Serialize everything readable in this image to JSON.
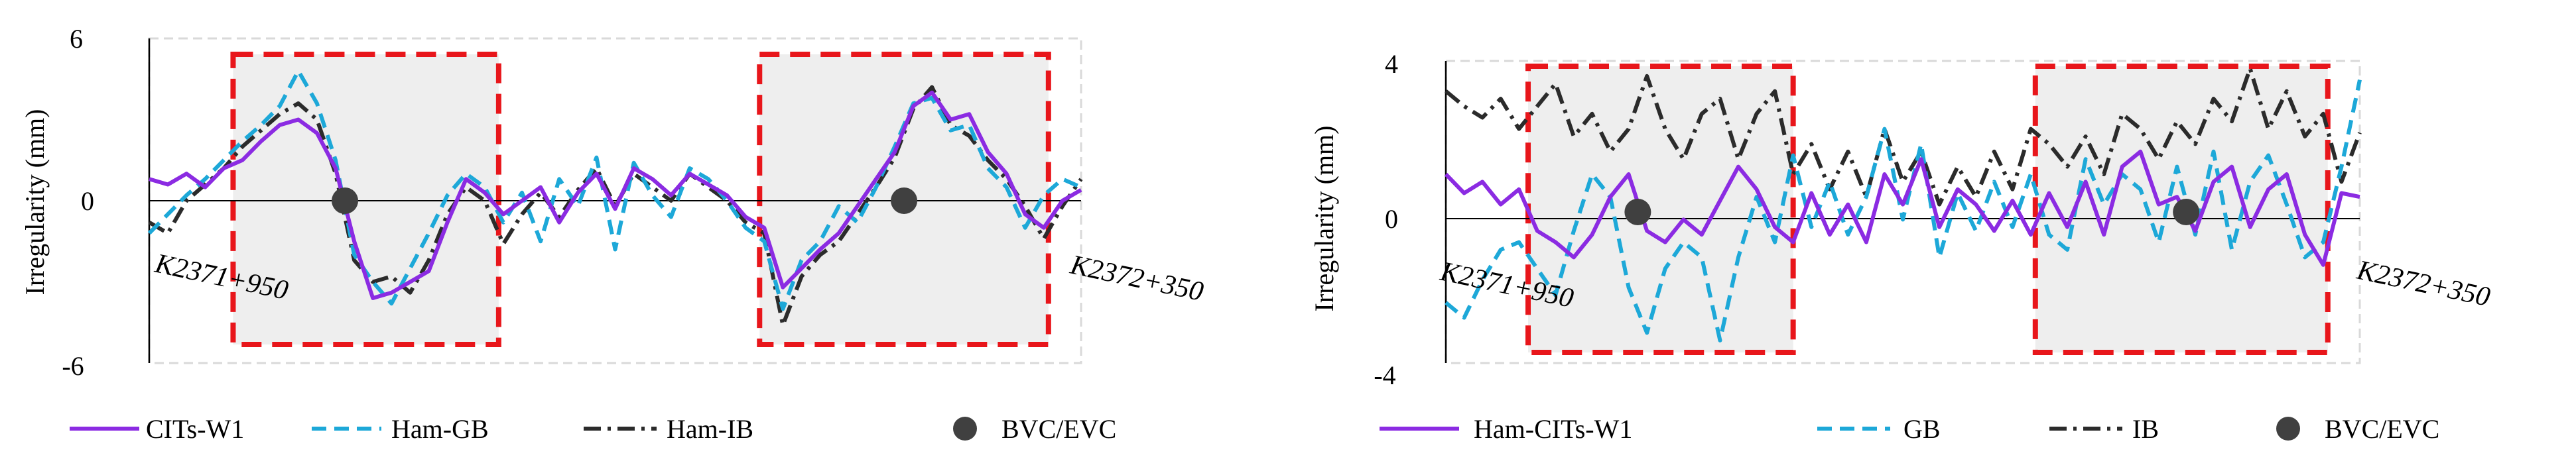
{
  "chart_data": [
    {
      "type": "line",
      "ylabel": "Irregularity (mm)",
      "xlabel": "",
      "ylim": [
        -6,
        6
      ],
      "yticks": [
        6,
        0,
        -6
      ],
      "grid": false,
      "start_label": "K2371+950",
      "end_label": "K2372+350",
      "legend_position": "bottom",
      "colors": {
        "s1": "#8B2BE2",
        "s2": "#1DA8D8",
        "s3": "#2b2b2b",
        "marker": "#404040",
        "box": "#E8161B",
        "shade": "#d9d9d9"
      },
      "legend": [
        "CITs-W1",
        "Ham-GB",
        "Ham-IB",
        "BVC/EVC"
      ],
      "curve_regions": [
        [
          0.09,
          0.375
        ],
        [
          0.655,
          0.965
        ]
      ],
      "bvc_evc_markers": [
        [
          0.21,
          0
        ],
        [
          0.81,
          0
        ]
      ],
      "series": [
        {
          "name": "CITs-W1",
          "style": "solid",
          "x": [
            0,
            0.02,
            0.04,
            0.06,
            0.08,
            0.1,
            0.12,
            0.14,
            0.16,
            0.18,
            0.2,
            0.22,
            0.24,
            0.26,
            0.28,
            0.3,
            0.32,
            0.34,
            0.36,
            0.38,
            0.4,
            0.42,
            0.44,
            0.46,
            0.48,
            0.5,
            0.52,
            0.54,
            0.56,
            0.58,
            0.6,
            0.62,
            0.64,
            0.66,
            0.68,
            0.7,
            0.72,
            0.74,
            0.76,
            0.78,
            0.8,
            0.82,
            0.84,
            0.86,
            0.88,
            0.9,
            0.92,
            0.94,
            0.96,
            0.98,
            1
          ],
          "y": [
            0.8,
            0.6,
            1.0,
            0.5,
            1.2,
            1.5,
            2.2,
            2.8,
            3.0,
            2.5,
            1.2,
            -1.5,
            -3.6,
            -3.4,
            -3.0,
            -2.6,
            -0.8,
            0.8,
            0.3,
            -0.5,
            0.0,
            0.5,
            -0.8,
            0.3,
            1.0,
            -0.3,
            1.2,
            0.8,
            0.2,
            1.0,
            0.6,
            0.2,
            -0.6,
            -1.0,
            -3.2,
            -2.5,
            -1.8,
            -1.2,
            -0.2,
            0.8,
            1.8,
            3.5,
            4.0,
            3.0,
            3.2,
            1.8,
            1.0,
            -0.5,
            -1.0,
            0.0,
            0.4
          ]
        },
        {
          "name": "Ham-GB",
          "style": "dashed",
          "x": [
            0,
            0.02,
            0.04,
            0.06,
            0.08,
            0.1,
            0.12,
            0.14,
            0.16,
            0.18,
            0.2,
            0.22,
            0.24,
            0.26,
            0.28,
            0.3,
            0.32,
            0.34,
            0.36,
            0.38,
            0.4,
            0.42,
            0.44,
            0.46,
            0.48,
            0.5,
            0.52,
            0.54,
            0.56,
            0.58,
            0.6,
            0.62,
            0.64,
            0.66,
            0.68,
            0.7,
            0.72,
            0.74,
            0.76,
            0.78,
            0.8,
            0.82,
            0.84,
            0.86,
            0.88,
            0.9,
            0.92,
            0.94,
            0.96,
            0.98,
            1
          ],
          "y": [
            -1.2,
            -0.5,
            0.2,
            0.8,
            1.5,
            2.2,
            2.8,
            3.5,
            4.8,
            3.6,
            1.5,
            -2.0,
            -3.0,
            -3.8,
            -2.5,
            -1.2,
            0.2,
            1.0,
            0.5,
            -0.8,
            0.3,
            -1.5,
            0.8,
            -0.2,
            1.6,
            -1.8,
            1.4,
            0.2,
            -0.6,
            1.2,
            0.8,
            0.0,
            -1.0,
            -1.5,
            -4.0,
            -2.2,
            -1.5,
            -0.2,
            -0.8,
            0.5,
            2.0,
            3.6,
            3.8,
            2.6,
            2.8,
            1.2,
            0.5,
            -1.0,
            0.2,
            0.8,
            0.5
          ]
        },
        {
          "name": "Ham-IB",
          "style": "dashdot",
          "x": [
            0,
            0.02,
            0.04,
            0.06,
            0.08,
            0.1,
            0.12,
            0.14,
            0.16,
            0.18,
            0.2,
            0.22,
            0.24,
            0.26,
            0.28,
            0.3,
            0.32,
            0.34,
            0.36,
            0.38,
            0.4,
            0.42,
            0.44,
            0.46,
            0.48,
            0.5,
            0.52,
            0.54,
            0.56,
            0.58,
            0.6,
            0.62,
            0.64,
            0.66,
            0.68,
            0.7,
            0.72,
            0.74,
            0.76,
            0.78,
            0.8,
            0.82,
            0.84,
            0.86,
            0.88,
            0.9,
            0.92,
            0.94,
            0.96,
            0.98,
            1
          ],
          "y": [
            -0.8,
            -1.2,
            0.0,
            0.6,
            1.2,
            2.0,
            2.6,
            3.2,
            3.6,
            3.0,
            1.0,
            -2.2,
            -3.0,
            -2.8,
            -3.4,
            -2.2,
            -0.5,
            0.5,
            0.0,
            -1.6,
            -0.5,
            0.3,
            -0.6,
            0.4,
            1.2,
            -0.2,
            1.0,
            0.5,
            0.0,
            1.0,
            0.5,
            0.0,
            -0.8,
            -1.2,
            -4.6,
            -2.8,
            -2.0,
            -1.5,
            -0.5,
            0.5,
            1.6,
            3.4,
            4.2,
            2.8,
            2.4,
            1.5,
            0.8,
            -0.2,
            -1.4,
            -0.2,
            0.8
          ]
        }
      ]
    },
    {
      "type": "line",
      "ylabel": "Irregularity (mm)",
      "xlabel": "",
      "ylim": [
        -4,
        4
      ],
      "yticks": [
        4,
        0,
        -4
      ],
      "grid": false,
      "start_label": "K2371+950",
      "end_label": "K2372+350",
      "legend_position": "bottom",
      "colors": {
        "s1": "#8B2BE2",
        "s2": "#1DA8D8",
        "s3": "#2b2b2b",
        "marker": "#404040",
        "box": "#E8161B",
        "shade": "#d9d9d9"
      },
      "legend": [
        "Ham-CITs-W1",
        "GB",
        "IB",
        "BVC/EVC"
      ],
      "curve_regions": [
        [
          0.09,
          0.38
        ],
        [
          0.645,
          0.965
        ]
      ],
      "bvc_evc_markers": [
        [
          0.21,
          0
        ],
        [
          0.81,
          0
        ]
      ],
      "series": [
        {
          "name": "Ham-CITs-W1",
          "style": "solid",
          "x": [
            0,
            0.02,
            0.04,
            0.06,
            0.08,
            0.1,
            0.12,
            0.14,
            0.16,
            0.18,
            0.2,
            0.22,
            0.24,
            0.26,
            0.28,
            0.3,
            0.32,
            0.34,
            0.36,
            0.38,
            0.4,
            0.42,
            0.44,
            0.46,
            0.48,
            0.5,
            0.52,
            0.54,
            0.56,
            0.58,
            0.6,
            0.62,
            0.64,
            0.66,
            0.68,
            0.7,
            0.72,
            0.74,
            0.76,
            0.78,
            0.8,
            0.82,
            0.84,
            0.86,
            0.88,
            0.9,
            0.92,
            0.94,
            0.96,
            0.98,
            1
          ],
          "y": [
            1.0,
            0.5,
            0.8,
            0.2,
            0.6,
            -0.5,
            -0.8,
            -1.2,
            -0.6,
            0.4,
            1.0,
            -0.5,
            -0.8,
            -0.2,
            -0.6,
            0.3,
            1.2,
            0.6,
            -0.4,
            -0.8,
            0.5,
            -0.6,
            0.2,
            -0.8,
            1.0,
            0.2,
            1.4,
            -0.4,
            0.6,
            0.2,
            -0.5,
            0.3,
            -0.6,
            0.5,
            -0.4,
            0.8,
            -0.6,
            1.2,
            1.6,
            0.2,
            0.4,
            -0.5,
            0.8,
            1.2,
            -0.4,
            0.6,
            1.0,
            -0.6,
            -1.4,
            0.5,
            0.4
          ]
        },
        {
          "name": "GB",
          "style": "dashed",
          "x": [
            0,
            0.02,
            0.04,
            0.06,
            0.08,
            0.1,
            0.12,
            0.14,
            0.16,
            0.18,
            0.2,
            0.22,
            0.24,
            0.26,
            0.28,
            0.3,
            0.32,
            0.34,
            0.36,
            0.38,
            0.4,
            0.42,
            0.44,
            0.46,
            0.48,
            0.5,
            0.52,
            0.54,
            0.56,
            0.58,
            0.6,
            0.62,
            0.64,
            0.66,
            0.68,
            0.7,
            0.72,
            0.74,
            0.76,
            0.78,
            0.8,
            0.82,
            0.84,
            0.86,
            0.88,
            0.9,
            0.92,
            0.94,
            0.96,
            0.98,
            1
          ],
          "y": [
            -2.4,
            -2.8,
            -1.8,
            -1.0,
            -0.8,
            -1.5,
            -2.2,
            -0.5,
            1.0,
            0.4,
            -2.0,
            -3.2,
            -1.5,
            -0.8,
            -1.2,
            -3.4,
            -1.2,
            0.4,
            -0.8,
            1.5,
            -0.4,
            0.8,
            -0.6,
            0.4,
            2.2,
            -0.2,
            1.8,
            -1.2,
            0.5,
            -0.5,
            0.8,
            -0.4,
            1.0,
            -0.6,
            -1.0,
            1.4,
            0.2,
            1.0,
            0.6,
            -0.8,
            1.2,
            -0.6,
            1.6,
            -1.0,
            0.8,
            1.5,
            0.2,
            -1.2,
            -0.8,
            1.2,
            3.5
          ]
        },
        {
          "name": "IB",
          "style": "dashdot",
          "x": [
            0,
            0.02,
            0.04,
            0.06,
            0.08,
            0.1,
            0.12,
            0.14,
            0.16,
            0.18,
            0.2,
            0.22,
            0.24,
            0.26,
            0.28,
            0.3,
            0.32,
            0.34,
            0.36,
            0.38,
            0.4,
            0.42,
            0.44,
            0.46,
            0.48,
            0.5,
            0.52,
            0.54,
            0.56,
            0.58,
            0.6,
            0.62,
            0.64,
            0.66,
            0.68,
            0.7,
            0.72,
            0.74,
            0.76,
            0.78,
            0.8,
            0.82,
            0.84,
            0.86,
            0.88,
            0.9,
            0.92,
            0.94,
            0.96,
            0.98,
            1
          ],
          "y": [
            3.2,
            2.8,
            2.5,
            3.0,
            2.2,
            2.8,
            3.4,
            2.0,
            2.6,
            1.6,
            2.2,
            3.6,
            2.2,
            1.4,
            2.6,
            3.0,
            1.4,
            2.6,
            3.2,
            1.0,
            1.8,
            0.6,
            1.6,
            0.4,
            2.2,
            0.8,
            1.6,
            0.2,
            1.2,
            0.4,
            1.6,
            0.6,
            2.2,
            1.8,
            1.2,
            2.0,
            1.0,
            2.6,
            2.2,
            1.4,
            2.4,
            1.8,
            3.0,
            2.4,
            3.8,
            2.2,
            3.2,
            2.0,
            2.6,
            0.8,
            2.1
          ]
        }
      ]
    }
  ]
}
